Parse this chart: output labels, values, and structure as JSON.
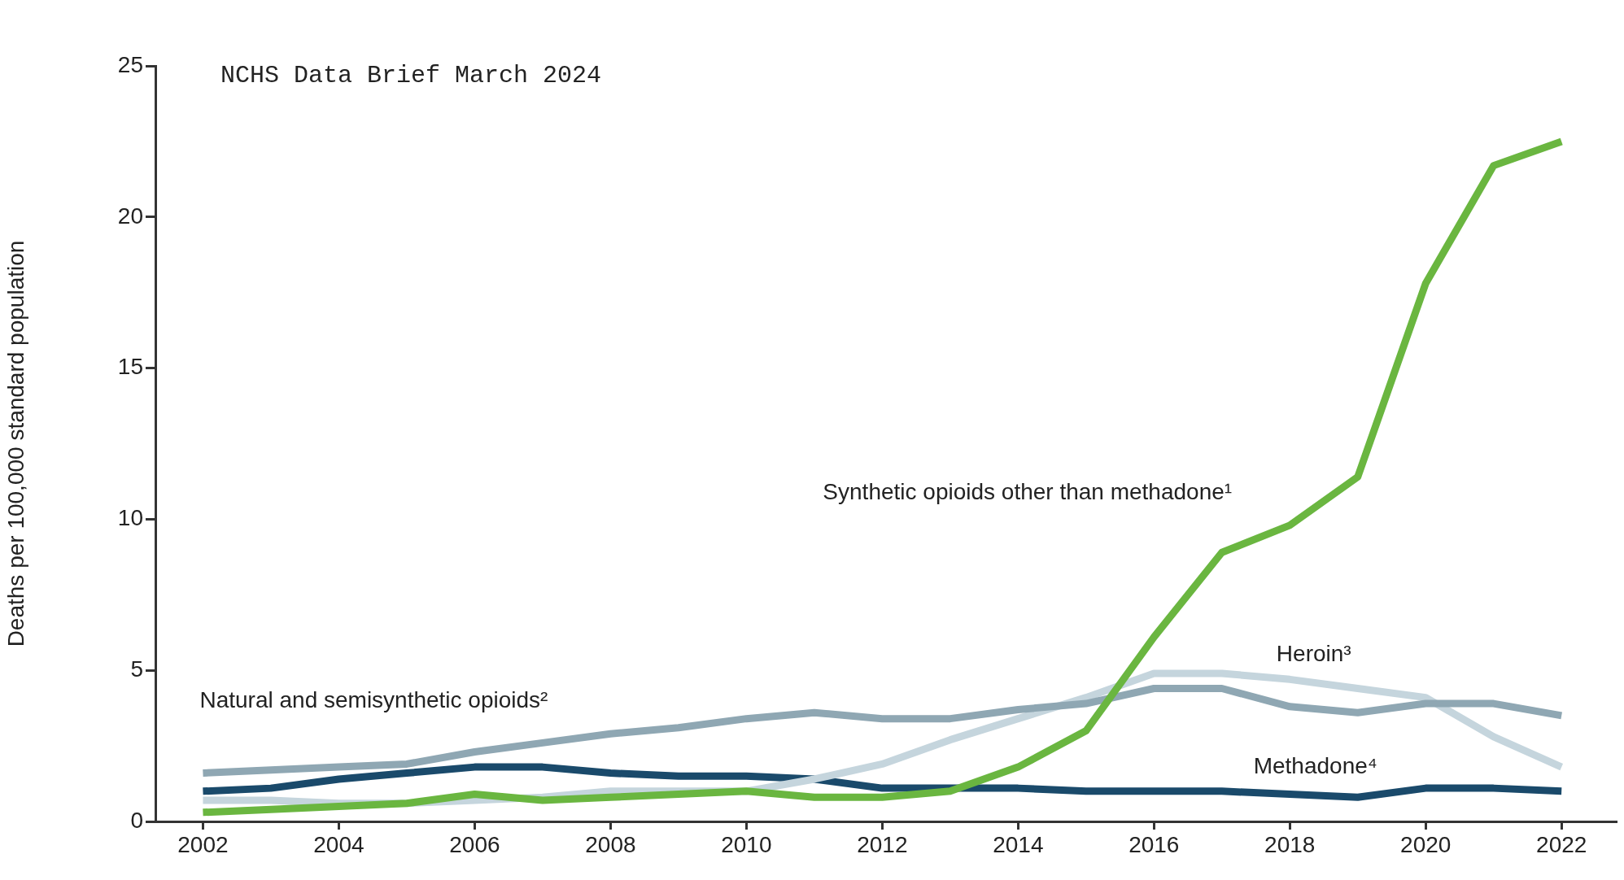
{
  "chart_data": {
    "type": "line",
    "title": "NCHS Data Brief March 2024",
    "ylabel": "Deaths per 100,000 standard population",
    "x": [
      2002,
      2003,
      2004,
      2005,
      2006,
      2007,
      2008,
      2009,
      2010,
      2011,
      2012,
      2013,
      2014,
      2015,
      2016,
      2017,
      2018,
      2019,
      2020,
      2021,
      2022
    ],
    "xlim": [
      2001.3,
      2022.8
    ],
    "xticks": [
      2002,
      2004,
      2006,
      2008,
      2010,
      2012,
      2014,
      2016,
      2018,
      2020,
      2022
    ],
    "ylim": [
      0,
      25
    ],
    "yticks": [
      0,
      5,
      10,
      15,
      20,
      25
    ],
    "grid": false,
    "legend": false,
    "marker": "none",
    "line_style": "solid",
    "series": [
      {
        "name": "Synthetic opioids other than methadone¹",
        "color": "#6ab640",
        "values": [
          0.3,
          0.4,
          0.5,
          0.6,
          0.9,
          0.7,
          0.8,
          0.9,
          1.0,
          0.8,
          0.8,
          1.0,
          1.8,
          3.0,
          6.1,
          8.9,
          9.8,
          11.4,
          17.8,
          21.7,
          22.5
        ]
      },
      {
        "name": "Natural and semisynthetic opioids²",
        "color": "#8fa7b3",
        "values": [
          1.6,
          1.7,
          1.8,
          1.9,
          2.3,
          2.6,
          2.9,
          3.1,
          3.4,
          3.6,
          3.4,
          3.4,
          3.7,
          3.9,
          4.4,
          4.4,
          3.8,
          3.6,
          3.9,
          3.9,
          3.5
        ]
      },
      {
        "name": "Heroin³",
        "color": "#c5d5dd",
        "values": [
          0.7,
          0.7,
          0.6,
          0.6,
          0.7,
          0.8,
          1.0,
          1.0,
          1.0,
          1.4,
          1.9,
          2.7,
          3.4,
          4.1,
          4.9,
          4.9,
          4.7,
          4.4,
          4.1,
          2.8,
          1.8
        ]
      },
      {
        "name": "Methadone⁴",
        "color": "#1a4a6b",
        "values": [
          1.0,
          1.1,
          1.4,
          1.6,
          1.8,
          1.8,
          1.6,
          1.5,
          1.5,
          1.4,
          1.1,
          1.1,
          1.1,
          1.0,
          1.0,
          1.0,
          0.9,
          0.8,
          1.1,
          1.1,
          1.0
        ]
      }
    ]
  }
}
